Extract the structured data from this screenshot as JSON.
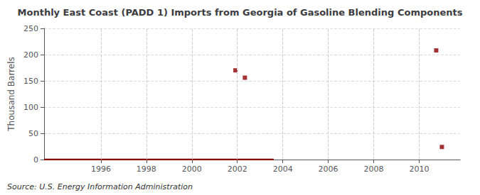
{
  "chart_data": {
    "type": "scatter",
    "title": "Monthly East Coast (PADD 1) Imports from Georgia of Gasoline Blending Components",
    "ylabel": "Thousand Barrels",
    "source": "Source: U.S. Energy Information Administration",
    "series": [
      {
        "type": "line",
        "color": "#8b0000",
        "line_style": "solid",
        "x": [
          1993.5,
          2003.6
        ],
        "values": [
          0,
          0
        ]
      },
      {
        "type": "scatter",
        "color": "#8b0000",
        "marker": "square",
        "x": [
          2001.917,
          2002.333,
          2010.75,
          2011.0
        ],
        "values": [
          170,
          156,
          208,
          24
        ]
      }
    ],
    "xlim": [
      1993.5,
      2011.8
    ],
    "xticks": [
      1996,
      1998,
      2000,
      2002,
      2004,
      2006,
      2008,
      2010
    ],
    "ylim": [
      0,
      250
    ],
    "yticks": [
      0,
      50,
      100,
      150,
      200,
      250
    ],
    "grid": true
  }
}
